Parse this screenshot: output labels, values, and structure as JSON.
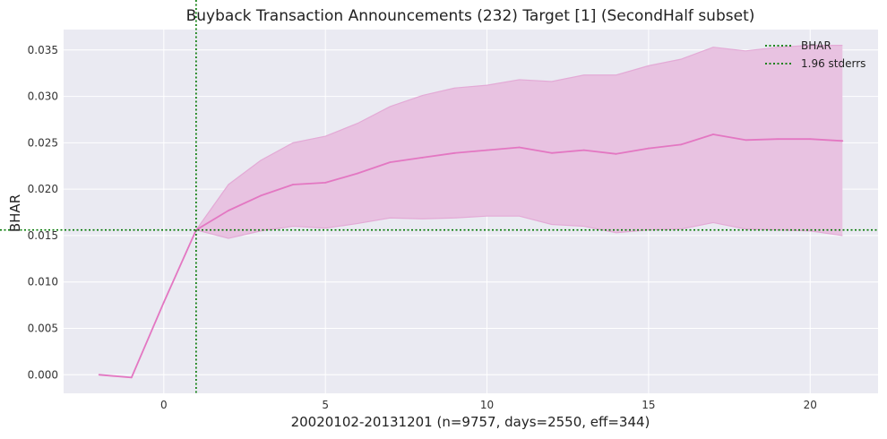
{
  "chart_data": {
    "type": "line",
    "title": "Buyback Transaction Announcements (232) Target [1] (SecondHalf subset)",
    "xlabel": "20020102-20131201 (n=9757, days=2550, eff=344)",
    "ylabel": "BHAR",
    "xlim": [
      -3.1,
      22.1
    ],
    "ylim": [
      -0.002,
      0.0372
    ],
    "x_ticks": [
      0,
      5,
      10,
      15,
      20
    ],
    "x_tick_labels": [
      "0",
      "5",
      "10",
      "15",
      "20"
    ],
    "y_ticks": [
      0.0,
      0.005,
      0.01,
      0.015,
      0.02,
      0.025,
      0.03,
      0.035
    ],
    "y_tick_labels": [
      "0.000",
      "0.005",
      "0.010",
      "0.015",
      "0.020",
      "0.025",
      "0.030",
      "0.035"
    ],
    "grid": true,
    "legend_position": "top-right",
    "colors": {
      "plot_bg": "#eaeaf2",
      "line": "#e377c2",
      "band": "#e8c2e1",
      "band_edge": "#e3aad6",
      "ref": "#007700",
      "grid": "#ffffff"
    },
    "series": [
      {
        "name": "",
        "x": [
          -2,
          -1,
          0,
          1,
          2,
          3,
          4,
          5,
          6,
          7,
          8,
          9,
          10,
          11,
          12,
          13,
          14,
          15,
          16,
          17,
          18,
          19,
          20,
          21
        ],
        "y": [
          0.0,
          -0.0003,
          0.0078,
          0.0156,
          0.0177,
          0.0193,
          0.0205,
          0.0207,
          0.0217,
          0.0229,
          0.0234,
          0.0239,
          0.0242,
          0.0245,
          0.0239,
          0.0242,
          0.0238,
          0.0244,
          0.0248,
          0.0259,
          0.0253,
          0.0254,
          0.0254,
          0.0252
        ],
        "lower": [
          null,
          null,
          null,
          0.0156,
          0.0147,
          0.0155,
          0.016,
          0.0158,
          0.0163,
          0.0169,
          0.0168,
          0.0169,
          0.0171,
          0.0171,
          0.0162,
          0.016,
          0.0153,
          0.0156,
          0.0157,
          0.0164,
          0.0157,
          0.0156,
          0.0155,
          0.015
        ],
        "upper": [
          null,
          null,
          null,
          0.0156,
          0.0205,
          0.0231,
          0.025,
          0.0257,
          0.0271,
          0.0289,
          0.0301,
          0.0309,
          0.0312,
          0.0318,
          0.0316,
          0.0323,
          0.0323,
          0.0333,
          0.034,
          0.0353,
          0.0349,
          0.0353,
          0.0355,
          0.0355
        ]
      }
    ],
    "reference_lines": {
      "vertical_x": 1,
      "horizontal_y": 0.0156
    },
    "legend": [
      {
        "label": "BHAR",
        "style": "dotted",
        "color": "#007700"
      },
      {
        "label": "1.96 stderrs",
        "style": "dotted",
        "color": "#007700"
      }
    ]
  }
}
